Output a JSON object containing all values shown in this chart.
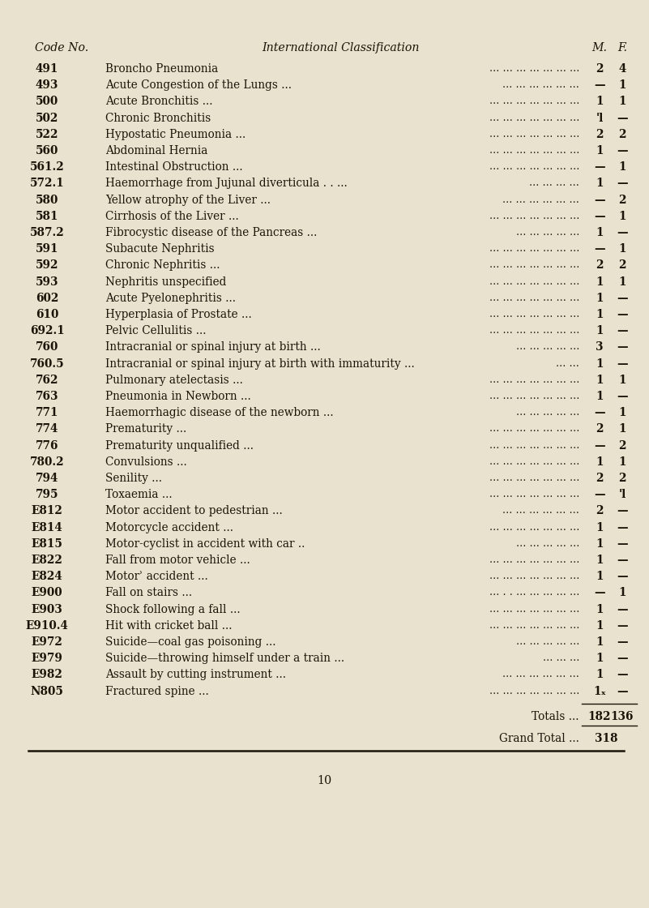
{
  "bg_color": "#e8e2ce",
  "rows": [
    [
      "491",
      "Broncho Pneumonia",
      "... ... ... ... ... ... ...",
      "2",
      "4"
    ],
    [
      "493",
      "Acute Congestion of the Lungs ...",
      "... ... ... ... ... ...",
      "—",
      "1"
    ],
    [
      "500",
      "Acute Bronchitis ...",
      "... ... ... ... ... ... ...",
      "1",
      "1"
    ],
    [
      "502",
      "Chronic Bronchitis",
      "... ... ... ... ... ... ...",
      "'l",
      "—"
    ],
    [
      "522",
      "Hypostatic Pneumonia ...",
      "... ... ... ... ... ... ...",
      "2",
      "2"
    ],
    [
      "560",
      "Abdominal Hernia",
      "... ... ... ... ... ... ...",
      "1",
      "—"
    ],
    [
      "561.2",
      "Intestinal Obstruction ...",
      "... ... ... ... ... ... ...",
      "—",
      "1"
    ],
    [
      "572.1",
      "Haemorrhage from Jujunal diverticula . . ...",
      "... ... ... ...",
      "1",
      "—"
    ],
    [
      "580",
      "Yellow atrophy of the Liver ...",
      "... ... ... ... ... ...",
      "—",
      "2"
    ],
    [
      "581",
      "Cirrhosis of the Liver ...",
      "... ... ... ... ... ... ...",
      "—",
      "1"
    ],
    [
      "587.2",
      "Fibrocystic disease of the Pancreas ...",
      "... ... ... ... ...",
      "1",
      "—"
    ],
    [
      "591",
      "Subacute Nephritis",
      "... ... ... ... ... ... ...",
      "—",
      "1"
    ],
    [
      "592",
      "Chronic Nephritis ...",
      "... ... ... ... ... ... ...",
      "2",
      "2"
    ],
    [
      "593",
      "Nephritis unspecified",
      "... ... ... ... ... ... ...",
      "1",
      "1"
    ],
    [
      "602",
      "Acute Pyelonephritis ...",
      "... ... ... ... ... ... ...",
      "1",
      "—"
    ],
    [
      "610",
      "Hyperplasia of Prostate ...",
      "... ... ... ... ... ... ...",
      "1",
      "—"
    ],
    [
      "692.1",
      "Pelvic Cellulitis ...",
      "... ... ... ... ... ... ...",
      "1",
      "—"
    ],
    [
      "760",
      "Intracranial or spinal injury at birth ...",
      "... ... ... ... ...",
      "3",
      "—"
    ],
    [
      "760.5",
      "Intracranial or spinal injury at birth with immaturity ...",
      "... ...",
      "1",
      "—"
    ],
    [
      "762",
      "Pulmonary atelectasis ...",
      "... ... ... ... ... ... ...",
      "1",
      "1"
    ],
    [
      "763",
      "Pneumonia in Newborn ...",
      "... ... ... ... ... ... ...",
      "1",
      "—"
    ],
    [
      "771",
      "Haemorrhagic disease of the newborn ...",
      "... ... ... ... ...",
      "—",
      "1"
    ],
    [
      "774",
      "Prematurity ...",
      "... ... ... ... ... ... ...",
      "2",
      "1"
    ],
    [
      "776",
      "Prematurity unqualified ...",
      "... ... ... ... ... ... ...",
      "—",
      "2"
    ],
    [
      "780.2",
      "Convulsions ...",
      "... ... ... ... ... ... ...",
      "1",
      "1"
    ],
    [
      "794",
      "Senility ...",
      "... ... ... ... ... ... ...",
      "2",
      "2"
    ],
    [
      "795",
      "Toxaemia ...",
      "... ... ... ... ... ... ...",
      "—",
      "'l"
    ],
    [
      "E812",
      "Motor accident to pedestrian ...",
      "... ... ... ... ... ...",
      "2",
      "—"
    ],
    [
      "E814",
      "Motorcycle accident ...",
      "... ... ... ... ... ... ...",
      "1",
      "—"
    ],
    [
      "E815",
      "Motor-cyclist in accident with car ..",
      "... ... ... ... ...",
      "1",
      "—"
    ],
    [
      "E822",
      "Fall from motor vehicle ...",
      "... ... ... ... ... ... ...",
      "1",
      "—"
    ],
    [
      "E824",
      "Motorʾ accident ...",
      "... ... ... ... ... ... ...",
      "1",
      "—"
    ],
    [
      "E900",
      "Fall on stairs ...",
      "... . . ... ... ... ... ...",
      "—",
      "1"
    ],
    [
      "E903",
      "Shock following a fall ...",
      "... ... ... ... ... ... ...",
      "1",
      "—"
    ],
    [
      "E910.4",
      "Hit with cricket ball ...",
      "... ... ... ... ... ... ...",
      "1",
      "—"
    ],
    [
      "E972",
      "Suicide—coal gas poisoning ...",
      "... ... ... ... ...",
      "1",
      "—"
    ],
    [
      "E979",
      "Suicide—throwing himself under a train ...",
      "... ... ...",
      "1",
      "—"
    ],
    [
      "E982",
      "Assault by cutting instrument ...",
      "... ... ... ... ... ...",
      "1",
      "—"
    ],
    [
      "N805",
      "Fractured spine ...",
      "... ... ... ... ... ... ...",
      "1ₓ",
      "—"
    ]
  ],
  "title_code": "Code No.",
  "title_class": "International Classification",
  "title_m": "M.",
  "title_f": "F.",
  "page_number": "10",
  "text_color": "#1a1508",
  "line_color": "#1a1508",
  "font_size": 9.8,
  "header_font_size": 10.2
}
